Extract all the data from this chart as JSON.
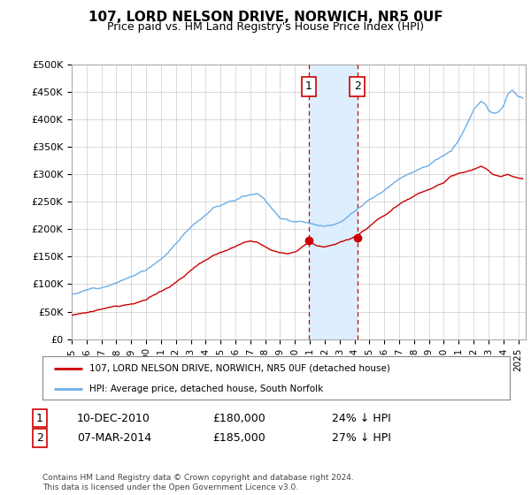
{
  "title": "107, LORD NELSON DRIVE, NORWICH, NR5 0UF",
  "subtitle": "Price paid vs. HM Land Registry's House Price Index (HPI)",
  "ylabel_ticks": [
    "£0",
    "£50K",
    "£100K",
    "£150K",
    "£200K",
    "£250K",
    "£300K",
    "£350K",
    "£400K",
    "£450K",
    "£500K"
  ],
  "ytick_values": [
    0,
    50000,
    100000,
    150000,
    200000,
    250000,
    300000,
    350000,
    400000,
    450000,
    500000
  ],
  "ylim": [
    0,
    500000
  ],
  "xlim_start": 1995.0,
  "xlim_end": 2025.5,
  "hpi_color": "#6aaee8",
  "price_color": "#cc0000",
  "marker1_date": 2010.93,
  "marker2_date": 2014.18,
  "marker1_price": 180000,
  "marker2_price": 185000,
  "shade_color": "#ddeeff",
  "legend_label_red": "107, LORD NELSON DRIVE, NORWICH, NR5 0UF (detached house)",
  "legend_label_blue": "HPI: Average price, detached house, South Norfolk",
  "footer": "Contains HM Land Registry data © Crown copyright and database right 2024.\nThis data is licensed under the Open Government Licence v3.0.",
  "xtick_years": [
    1995,
    1996,
    1997,
    1998,
    1999,
    2000,
    2001,
    2002,
    2003,
    2004,
    2005,
    2006,
    2007,
    2008,
    2009,
    2010,
    2011,
    2012,
    2013,
    2014,
    2015,
    2016,
    2017,
    2018,
    2019,
    2020,
    2021,
    2022,
    2023,
    2024,
    2025
  ],
  "background_color": "#ffffff",
  "grid_color": "#cccccc",
  "table_rows": [
    {
      "num": "1",
      "date": "10-DEC-2010",
      "price": "£180,000",
      "pct": "24% ↓ HPI"
    },
    {
      "num": "2",
      "date": "07-MAR-2014",
      "price": "£185,000",
      "pct": "27% ↓ HPI"
    }
  ]
}
